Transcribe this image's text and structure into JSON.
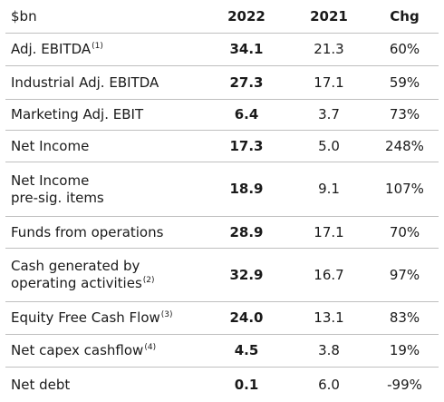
{
  "table": {
    "header": {
      "label": "$bn",
      "col_2022": "2022",
      "col_2021": "2021",
      "col_chg": "Chg"
    },
    "rows": [
      {
        "label": "Adj. EBITDA",
        "note": "(1)",
        "v2022": "34.1",
        "v2021": "21.3",
        "chg": "60%"
      },
      {
        "label": "Industrial Adj. EBITDA",
        "note": "",
        "v2022": "27.3",
        "v2021": "17.1",
        "chg": "59%"
      },
      {
        "label": "Marketing Adj. EBIT",
        "note": "",
        "v2022": "6.4",
        "v2021": "3.7",
        "chg": "73%"
      },
      {
        "label": "Net Income",
        "note": "",
        "v2022": "17.3",
        "v2021": "5.0",
        "chg": "248%"
      },
      {
        "label_line1": "Net Income",
        "label_line2": "pre-sig. items",
        "note": "",
        "v2022": "18.9",
        "v2021": "9.1",
        "chg": "107%"
      },
      {
        "label": "Funds from operations",
        "note": "",
        "v2022": "28.9",
        "v2021": "17.1",
        "chg": "70%"
      },
      {
        "label_line1": "Cash generated by",
        "label_line2": "operating activities",
        "note": "(2)",
        "v2022": "32.9",
        "v2021": "16.7",
        "chg": "97%"
      },
      {
        "label": "Equity Free Cash Flow",
        "note": "(3)",
        "v2022": "24.0",
        "v2021": "13.1",
        "chg": "83%"
      },
      {
        "label": "Net capex cashflow",
        "note": "(4)",
        "v2022": "4.5",
        "v2021": "3.8",
        "chg": "19%"
      },
      {
        "label": "Net debt",
        "note": "",
        "v2022": "0.1",
        "v2021": "6.0",
        "chg": "-99%"
      }
    ]
  }
}
